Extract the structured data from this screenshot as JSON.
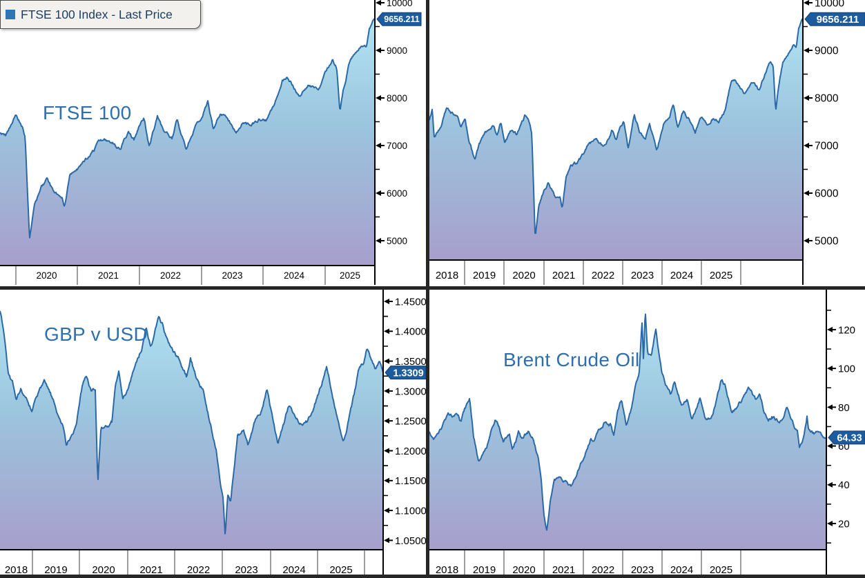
{
  "legend": {
    "label": "FTSE 100 Index - Last Price"
  },
  "colors": {
    "line": "#2a69a5",
    "fill_top": "#b4e9f6",
    "fill_mid": "#9cc4de",
    "fill_bottom": "#a79fcc",
    "badge_bg": "#1c5c9e",
    "badge_border": "#123f73",
    "badge_text": "#ffffff",
    "title": "#2f6fad",
    "axis_text": "#000000",
    "separator": "#3c3c3c",
    "frame": "#000000",
    "divider": "#262626",
    "legend_bg": "#f2f1ee",
    "legend_border": "#4a4a4a",
    "legend_text": "#1c3c5e",
    "legend_marker": "#2e75b6"
  },
  "chart_data": {
    "type": "area",
    "description": "Four last-price area charts: FTSE 100 (cropped view), FTSE 100 (full view), GBP v USD, Brent Crude Oil",
    "series": [
      {
        "name": "FTSE 100 Index - Last Price",
        "last_price": 9656.211,
        "x": [
          2018.0,
          2018.06,
          2018.1,
          2018.16,
          2018.24,
          2018.37,
          2018.44,
          2018.58,
          2018.66,
          2018.75,
          2018.83,
          2018.96,
          2019.04,
          2019.16,
          2019.33,
          2019.42,
          2019.5,
          2019.58,
          2019.7,
          2019.83,
          2019.92,
          2020.0,
          2020.1,
          2020.15,
          2020.22,
          2020.3,
          2020.42,
          2020.5,
          2020.62,
          2020.75,
          2020.79,
          2020.87,
          2020.96,
          2021.08,
          2021.2,
          2021.33,
          2021.46,
          2021.58,
          2021.7,
          2021.83,
          2021.92,
          2022.0,
          2022.08,
          2022.17,
          2022.3,
          2022.42,
          2022.54,
          2022.62,
          2022.77,
          2022.92,
          2023.04,
          2023.12,
          2023.21,
          2023.33,
          2023.46,
          2023.58,
          2023.7,
          2023.83,
          2023.95,
          2024.08,
          2024.2,
          2024.33,
          2024.42,
          2024.54,
          2024.62,
          2024.75,
          2024.92,
          2025.04,
          2025.15,
          2025.22,
          2025.27,
          2025.33,
          2025.42,
          2025.54,
          2025.63,
          2025.7,
          2025.75,
          2025.82
        ],
        "y": [
          7550,
          7750,
          7150,
          7250,
          7350,
          7780,
          7700,
          7650,
          7400,
          7550,
          7050,
          6650,
          6950,
          7200,
          7400,
          7200,
          7500,
          7150,
          7300,
          7200,
          7400,
          7600,
          7400,
          7200,
          5050,
          5750,
          6100,
          6250,
          5950,
          5900,
          5650,
          6350,
          6550,
          6600,
          6750,
          7000,
          7100,
          7050,
          6950,
          7300,
          7100,
          7400,
          7550,
          6950,
          7600,
          7250,
          7150,
          7500,
          6900,
          7450,
          7600,
          7900,
          7350,
          7700,
          7550,
          7250,
          7500,
          7400,
          7550,
          7500,
          7750,
          8350,
          8420,
          8200,
          8050,
          8300,
          8150,
          8500,
          8800,
          8650,
          7750,
          8200,
          8700,
          8950,
          9150,
          9100,
          9450,
          9656.211
        ]
      },
      {
        "name": "GBP v USD",
        "last_price": 1.3309,
        "x": [
          2018.3,
          2018.38,
          2018.46,
          2018.55,
          2018.62,
          2018.71,
          2018.8,
          2018.92,
          2019.04,
          2019.17,
          2019.29,
          2019.42,
          2019.54,
          2019.6,
          2019.7,
          2019.8,
          2019.92,
          2020.0,
          2020.1,
          2020.17,
          2020.22,
          2020.28,
          2020.38,
          2020.5,
          2020.56,
          2020.63,
          2020.71,
          2020.83,
          2020.96,
          2021.08,
          2021.17,
          2021.25,
          2021.33,
          2021.41,
          2021.5,
          2021.58,
          2021.7,
          2021.83,
          2021.96,
          2022.04,
          2022.17,
          2022.29,
          2022.42,
          2022.54,
          2022.63,
          2022.68,
          2022.72,
          2022.77,
          2022.83,
          2022.96,
          2023.08,
          2023.17,
          2023.29,
          2023.42,
          2023.54,
          2023.63,
          2023.75,
          2023.87,
          2023.96,
          2024.08,
          2024.21,
          2024.33,
          2024.46,
          2024.58,
          2024.71,
          2024.79,
          2024.92,
          2025.04,
          2025.13,
          2025.25,
          2025.33,
          2025.42,
          2025.5,
          2025.58,
          2025.67,
          2025.75,
          2025.82
        ],
        "y": [
          1.433,
          1.397,
          1.328,
          1.312,
          1.275,
          1.303,
          1.283,
          1.268,
          1.292,
          1.31,
          1.292,
          1.262,
          1.24,
          1.21,
          1.228,
          1.248,
          1.312,
          1.326,
          1.302,
          1.308,
          1.15,
          1.238,
          1.24,
          1.248,
          1.312,
          1.335,
          1.292,
          1.312,
          1.35,
          1.372,
          1.408,
          1.378,
          1.398,
          1.421,
          1.412,
          1.385,
          1.372,
          1.352,
          1.325,
          1.355,
          1.318,
          1.302,
          1.25,
          1.208,
          1.145,
          1.12,
          1.055,
          1.128,
          1.118,
          1.228,
          1.232,
          1.205,
          1.248,
          1.268,
          1.308,
          1.268,
          1.213,
          1.242,
          1.272,
          1.262,
          1.248,
          1.252,
          1.272,
          1.302,
          1.34,
          1.308,
          1.255,
          1.218,
          1.248,
          1.292,
          1.33,
          1.342,
          1.368,
          1.35,
          1.338,
          1.348,
          1.3309
        ]
      },
      {
        "name": "Brent Crude Oil",
        "last_price": 64.33,
        "x": [
          2018.0,
          2018.08,
          2018.17,
          2018.28,
          2018.37,
          2018.46,
          2018.54,
          2018.62,
          2018.71,
          2018.79,
          2018.87,
          2018.96,
          2019.04,
          2019.17,
          2019.3,
          2019.38,
          2019.46,
          2019.58,
          2019.63,
          2019.71,
          2019.75,
          2019.83,
          2019.96,
          2020.04,
          2020.13,
          2020.2,
          2020.26,
          2020.31,
          2020.38,
          2020.46,
          2020.58,
          2020.71,
          2020.79,
          2020.87,
          2020.96,
          2021.08,
          2021.17,
          2021.25,
          2021.33,
          2021.46,
          2021.58,
          2021.63,
          2021.71,
          2021.79,
          2021.88,
          2021.96,
          2022.04,
          2022.13,
          2022.19,
          2022.22,
          2022.25,
          2022.3,
          2022.37,
          2022.46,
          2022.5,
          2022.58,
          2022.67,
          2022.75,
          2022.83,
          2022.96,
          2023.08,
          2023.17,
          2023.27,
          2023.33,
          2023.46,
          2023.58,
          2023.7,
          2023.75,
          2023.83,
          2023.96,
          2024.08,
          2024.21,
          2024.29,
          2024.42,
          2024.5,
          2024.58,
          2024.67,
          2024.75,
          2024.87,
          2024.96,
          2025.04,
          2025.1,
          2025.17,
          2025.25,
          2025.29,
          2025.37,
          2025.44,
          2025.47,
          2025.52,
          2025.58,
          2025.67,
          2025.75,
          2025.82
        ],
        "y": [
          67,
          64,
          67,
          71,
          77,
          76,
          78,
          73,
          79,
          85,
          65,
          53,
          56,
          63,
          74,
          70,
          63,
          66,
          59,
          63,
          68,
          62,
          67,
          64,
          55,
          45,
          25,
          17,
          31,
          40,
          44,
          42,
          39,
          44,
          50,
          57,
          64,
          63,
          68,
          74,
          72,
          66,
          79,
          84,
          70,
          77,
          88,
          97,
          124,
          102,
          131,
          109,
          106,
          121,
          113,
          98,
          92,
          87,
          95,
          82,
          84,
          74,
          80,
          85,
          73,
          77,
          88,
          94,
          91,
          78,
          79,
          86,
          90,
          83,
          86,
          79,
          72,
          75,
          73,
          74,
          81,
          75,
          71,
          68,
          61,
          66,
          77,
          70,
          68,
          66,
          67,
          63,
          64.33
        ]
      }
    ],
    "panels": [
      {
        "title": "FTSE 100",
        "series": 0,
        "x_window": [
          2019.74,
          2025.84
        ],
        "y_window": [
          4478,
          10058
        ],
        "y_ticks": [
          {
            "v": 10000,
            "label": "10000"
          },
          {
            "v": 9000,
            "label": "9000"
          },
          {
            "v": 8000,
            "label": "8000"
          },
          {
            "v": 7000,
            "label": "7000"
          },
          {
            "v": 6000,
            "label": "6000"
          },
          {
            "v": 5000,
            "label": "5000"
          }
        ],
        "y_minor_step": 500,
        "x_labels": [
          "",
          "2020",
          "2021",
          "2022",
          "2023",
          "2024",
          "2025"
        ],
        "badge": "9656.211",
        "badge_value": 9656.211
      },
      {
        "title": "",
        "series": 0,
        "x_window": [
          2018.0,
          2025.84
        ],
        "y_window": [
          4594,
          10058
        ],
        "y_ticks": [
          {
            "v": 10000,
            "label": "10000"
          },
          {
            "v": 9000,
            "label": "9000"
          },
          {
            "v": 8000,
            "label": "8000"
          },
          {
            "v": 7000,
            "label": "7000"
          },
          {
            "v": 6000,
            "label": "6000"
          },
          {
            "v": 5000,
            "label": "5000"
          }
        ],
        "y_minor_step": 500,
        "x_labels": [
          "2018",
          "2019",
          "2020",
          "2021",
          "2022",
          "2023",
          "2024",
          "2025",
          ""
        ],
        "badge": "9656.211",
        "badge_value": 9656.211
      },
      {
        "title": "GBP v USD",
        "series": 1,
        "x_window": [
          2018.3,
          2025.82
        ],
        "y_window": [
          1.0343,
          1.4696
        ],
        "y_ticks": [
          {
            "v": 1.45,
            "label": "1.4500"
          },
          {
            "v": 1.4,
            "label": "1.4000"
          },
          {
            "v": 1.35,
            "label": "1.3500"
          },
          {
            "v": 1.3,
            "label": "1.3000"
          },
          {
            "v": 1.25,
            "label": "1.2500"
          },
          {
            "v": 1.2,
            "label": "1.2000"
          },
          {
            "v": 1.15,
            "label": "1.1500"
          },
          {
            "v": 1.1,
            "label": "1.1000"
          },
          {
            "v": 1.05,
            "label": "1.0500"
          }
        ],
        "y_minor_step": 0.025,
        "x_labels": [
          "2018",
          "2019",
          "2020",
          "2021",
          "2022",
          "2023",
          "2024",
          "2025",
          ""
        ],
        "badge": "1.3309",
        "badge_value": 1.3309
      },
      {
        "title": "Brent Crude Oil",
        "series": 2,
        "x_window": [
          2018.0,
          2025.82
        ],
        "y_window": [
          6.5,
          140.6
        ],
        "y_ticks": [
          {
            "v": 120,
            "label": "120"
          },
          {
            "v": 100,
            "label": "100"
          },
          {
            "v": 80,
            "label": "80"
          },
          {
            "v": 60,
            "label": "60"
          },
          {
            "v": 40,
            "label": "40"
          },
          {
            "v": 20,
            "label": "20"
          }
        ],
        "y_minor_step": 10,
        "x_labels": [
          "2018",
          "2019",
          "2020",
          "2021",
          "2022",
          "2023",
          "2024",
          "2025",
          ""
        ],
        "badge": "64.33",
        "badge_value": 64.33
      }
    ]
  }
}
